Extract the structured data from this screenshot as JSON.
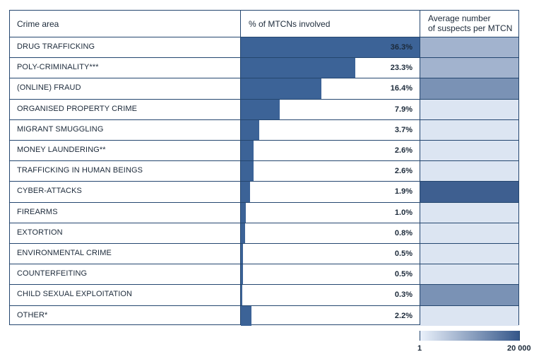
{
  "chart_data": {
    "type": "table",
    "columns": [
      "Crime area",
      "% of MTCNs involved",
      "Average number of suspects per MTCN"
    ],
    "header": {
      "col1": "Crime area",
      "col2": "% of MTCNs involved",
      "col3_line1": "Average number",
      "col3_line2": "of suspects per MTCN"
    },
    "rows": [
      {
        "label": "DRUG TRAFFICKING",
        "pct": 36.3,
        "pct_label": "36.3%",
        "suspects_level": 0.4
      },
      {
        "label": "POLY-CRIMINALITY***",
        "pct": 23.3,
        "pct_label": "23.3%",
        "suspects_level": 0.4
      },
      {
        "label": "(ONLINE) FRAUD",
        "pct": 16.4,
        "pct_label": "16.4%",
        "suspects_level": 0.62
      },
      {
        "label": "ORGANISED PROPERTY CRIME",
        "pct": 7.9,
        "pct_label": "7.9%",
        "suspects_level": 0.08
      },
      {
        "label": "MIGRANT SMUGGLING",
        "pct": 3.7,
        "pct_label": "3.7%",
        "suspects_level": 0.08
      },
      {
        "label": "MONEY LAUNDERING**",
        "pct": 2.6,
        "pct_label": "2.6%",
        "suspects_level": 0.08
      },
      {
        "label": "TRAFFICKING IN HUMAN BEINGS",
        "pct": 2.6,
        "pct_label": "2.6%",
        "suspects_level": 0.08
      },
      {
        "label": "CYBER-ATTACKS",
        "pct": 1.9,
        "pct_label": "1.9%",
        "suspects_level": 0.95
      },
      {
        "label": "FIREARMS",
        "pct": 1.0,
        "pct_label": "1.0%",
        "suspects_level": 0.08
      },
      {
        "label": "EXTORTION",
        "pct": 0.8,
        "pct_label": "0.8%",
        "suspects_level": 0.08
      },
      {
        "label": "ENVIRONMENTAL CRIME",
        "pct": 0.5,
        "pct_label": "0.5%",
        "suspects_level": 0.08
      },
      {
        "label": "COUNTERFEITING",
        "pct": 0.5,
        "pct_label": "0.5%",
        "suspects_level": 0.08
      },
      {
        "label": "CHILD SEXUAL EXPLOITATION",
        "pct": 0.3,
        "pct_label": "0.3%",
        "suspects_level": 0.62
      },
      {
        "label": "OTHER*",
        "pct": 2.2,
        "pct_label": "2.2%",
        "suspects_level": 0.08
      }
    ],
    "pct_axis_max": 100,
    "legend": {
      "min_label": "1",
      "max_label": "20 000",
      "color_low": "#eaf1fb",
      "color_high": "#35578a"
    },
    "colors": {
      "bar": "#3c6397",
      "border": "#24466f"
    }
  }
}
